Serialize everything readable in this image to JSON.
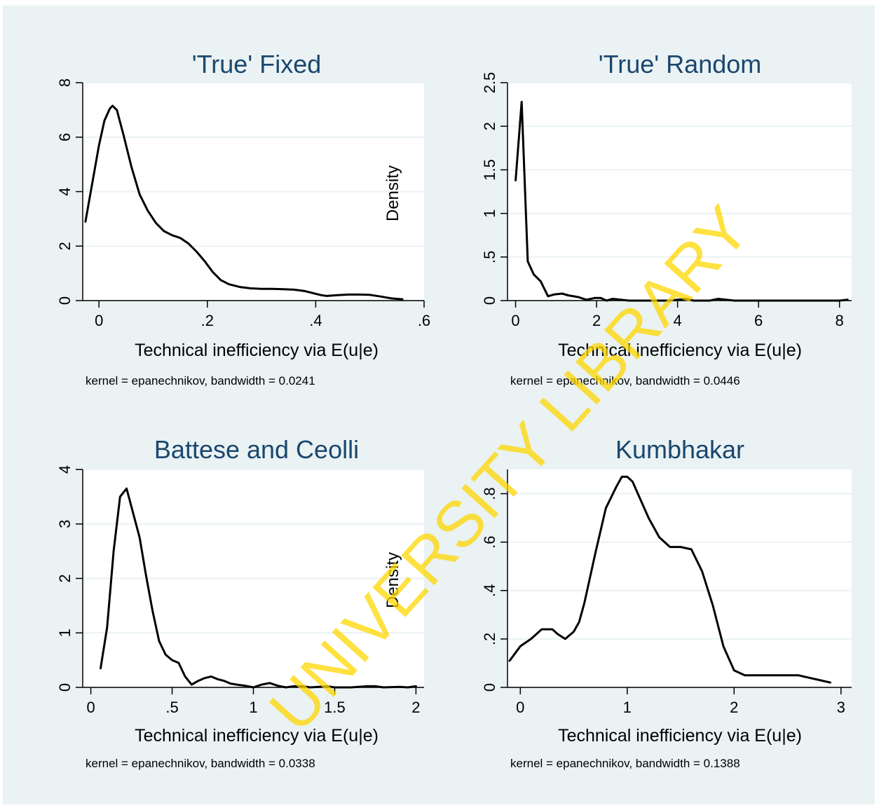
{
  "chart_data": [
    {
      "type": "line",
      "title": "'True' Fixed",
      "xlabel": "Technical inefficiency via E(u|e)",
      "ylabel": "Density",
      "note": "kernel = epanechnikov, bandwidth = 0.0241",
      "xlim": [
        -0.03,
        0.6
      ],
      "ylim": [
        0,
        8
      ],
      "xticks": [
        {
          "v": 0,
          "label": "0"
        },
        {
          "v": 0.2,
          "label": ".2"
        },
        {
          "v": 0.4,
          "label": ".4"
        },
        {
          "v": 0.6,
          "label": ".6"
        }
      ],
      "yticks": [
        {
          "v": 0,
          "label": "0"
        },
        {
          "v": 2,
          "label": "2"
        },
        {
          "v": 4,
          "label": "4"
        },
        {
          "v": 6,
          "label": "6"
        },
        {
          "v": 8,
          "label": "8"
        }
      ],
      "grid": true,
      "x": [
        -0.025,
        0.0,
        0.01,
        0.02,
        0.025,
        0.033,
        0.045,
        0.06,
        0.075,
        0.09,
        0.105,
        0.12,
        0.135,
        0.15,
        0.165,
        0.18,
        0.195,
        0.21,
        0.225,
        0.24,
        0.26,
        0.28,
        0.3,
        0.32,
        0.34,
        0.36,
        0.38,
        0.4,
        0.41,
        0.42,
        0.44,
        0.46,
        0.48,
        0.5,
        0.52,
        0.54,
        0.56
      ],
      "y": [
        2.9,
        5.7,
        6.6,
        7.05,
        7.15,
        7.0,
        6.1,
        4.9,
        3.9,
        3.3,
        2.85,
        2.55,
        2.4,
        2.3,
        2.1,
        1.8,
        1.45,
        1.05,
        0.75,
        0.6,
        0.5,
        0.45,
        0.43,
        0.43,
        0.42,
        0.4,
        0.35,
        0.25,
        0.2,
        0.17,
        0.2,
        0.22,
        0.22,
        0.21,
        0.15,
        0.08,
        0.05
      ]
    },
    {
      "type": "line",
      "title": "'True' Random",
      "xlabel": "Technical inefficiency via E(u|e)",
      "ylabel": "",
      "note": "kernel = epanechnikov, bandwidth = 0.0446",
      "xlim": [
        -0.2,
        8.3
      ],
      "ylim": [
        0,
        2.5
      ],
      "xticks": [
        {
          "v": 0,
          "label": "0"
        },
        {
          "v": 2,
          "label": "2"
        },
        {
          "v": 4,
          "label": "4"
        },
        {
          "v": 6,
          "label": "6"
        },
        {
          "v": 8,
          "label": "8"
        }
      ],
      "yticks": [
        {
          "v": 0,
          "label": "0"
        },
        {
          "v": 0.5,
          "label": ".5"
        },
        {
          "v": 1,
          "label": "1"
        },
        {
          "v": 1.5,
          "label": "1.5"
        },
        {
          "v": 2,
          "label": "2"
        },
        {
          "v": 2.5,
          "label": "2.5"
        }
      ],
      "grid": true,
      "x": [
        0.0,
        0.15,
        0.3,
        0.45,
        0.62,
        0.8,
        0.95,
        1.15,
        1.3,
        1.55,
        1.75,
        1.95,
        2.1,
        2.25,
        2.4,
        2.6,
        2.8,
        3.2,
        3.8,
        4.0,
        4.2,
        4.4,
        4.8,
        5.0,
        5.4,
        6.0,
        7.0,
        7.5,
        8.0,
        8.2
      ],
      "y": [
        1.38,
        2.28,
        0.45,
        0.3,
        0.22,
        0.05,
        0.07,
        0.08,
        0.06,
        0.04,
        0.01,
        0.03,
        0.03,
        0.0,
        0.02,
        0.01,
        0.0,
        0.0,
        0.0,
        0.01,
        0.02,
        0.0,
        0.0,
        0.02,
        0.0,
        0.0,
        0.0,
        0.0,
        0.0,
        0.01
      ]
    },
    {
      "type": "line",
      "title": "Battese and Ceolli",
      "xlabel": "Technical inefficiency via E(u|e)",
      "ylabel": "Density",
      "note": "kernel = epanechnikov, bandwidth = 0.0338",
      "xlim": [
        -0.05,
        2.05
      ],
      "ylim": [
        0,
        4
      ],
      "xticks": [
        {
          "v": 0,
          "label": "0"
        },
        {
          "v": 0.5,
          "label": ".5"
        },
        {
          "v": 1,
          "label": "1"
        },
        {
          "v": 1.5,
          "label": "1.5"
        },
        {
          "v": 2,
          "label": "2"
        }
      ],
      "yticks": [
        {
          "v": 0,
          "label": "0"
        },
        {
          "v": 1,
          "label": "1"
        },
        {
          "v": 2,
          "label": "2"
        },
        {
          "v": 3,
          "label": "3"
        },
        {
          "v": 4,
          "label": "4"
        }
      ],
      "grid": true,
      "x": [
        0.06,
        0.1,
        0.14,
        0.18,
        0.22,
        0.26,
        0.3,
        0.34,
        0.38,
        0.42,
        0.46,
        0.5,
        0.54,
        0.58,
        0.62,
        0.66,
        0.7,
        0.74,
        0.78,
        0.82,
        0.86,
        0.9,
        0.95,
        1.0,
        1.05,
        1.1,
        1.15,
        1.2,
        1.25,
        1.3,
        1.35,
        1.4,
        1.45,
        1.5,
        1.6,
        1.7,
        1.75,
        1.8,
        1.9,
        1.95,
        2.0
      ],
      "y": [
        0.35,
        1.1,
        2.5,
        3.5,
        3.65,
        3.2,
        2.75,
        2.05,
        1.4,
        0.85,
        0.6,
        0.5,
        0.45,
        0.2,
        0.05,
        0.12,
        0.17,
        0.2,
        0.15,
        0.12,
        0.07,
        0.05,
        0.03,
        0.0,
        0.05,
        0.08,
        0.03,
        0.0,
        0.02,
        0.02,
        0.0,
        0.01,
        0.02,
        0.0,
        0.0,
        0.02,
        0.02,
        0.0,
        0.01,
        0.0,
        0.02
      ]
    },
    {
      "type": "line",
      "title": "Kumbhakar",
      "xlabel": "Technical inefficiency via E(u|e)",
      "ylabel": "",
      "note": "kernel = epanechnikov, bandwidth = 0.1388",
      "xlim": [
        -0.12,
        3.1
      ],
      "ylim": [
        0,
        0.9
      ],
      "xticks": [
        {
          "v": 0,
          "label": "0"
        },
        {
          "v": 1,
          "label": "1"
        },
        {
          "v": 2,
          "label": "2"
        },
        {
          "v": 3,
          "label": "3"
        }
      ],
      "yticks": [
        {
          "v": 0,
          "label": "0"
        },
        {
          "v": 0.2,
          "label": ".2"
        },
        {
          "v": 0.4,
          "label": ".4"
        },
        {
          "v": 0.6,
          "label": ".6"
        },
        {
          "v": 0.8,
          "label": ".8"
        }
      ],
      "grid": true,
      "x": [
        -0.1,
        0.0,
        0.1,
        0.2,
        0.3,
        0.35,
        0.42,
        0.5,
        0.55,
        0.6,
        0.7,
        0.8,
        0.9,
        0.95,
        1.0,
        1.05,
        1.1,
        1.2,
        1.3,
        1.4,
        1.5,
        1.6,
        1.7,
        1.8,
        1.9,
        2.0,
        2.1,
        2.2,
        2.3,
        2.4,
        2.5,
        2.6,
        2.7,
        2.8,
        2.9
      ],
      "y": [
        0.11,
        0.17,
        0.2,
        0.24,
        0.24,
        0.22,
        0.2,
        0.23,
        0.27,
        0.35,
        0.55,
        0.74,
        0.83,
        0.87,
        0.87,
        0.85,
        0.8,
        0.7,
        0.62,
        0.58,
        0.58,
        0.57,
        0.48,
        0.34,
        0.17,
        0.07,
        0.05,
        0.05,
        0.05,
        0.05,
        0.05,
        0.05,
        0.04,
        0.03,
        0.02
      ]
    }
  ],
  "watermark": "UNIVERSITY LIBRARY",
  "colors": {
    "background": "#eaf2f3",
    "plot_region": "#ffffff",
    "title": "#1a476f",
    "line": "#000000",
    "grid": "#eaf2f3",
    "watermark": "#ffd700"
  }
}
